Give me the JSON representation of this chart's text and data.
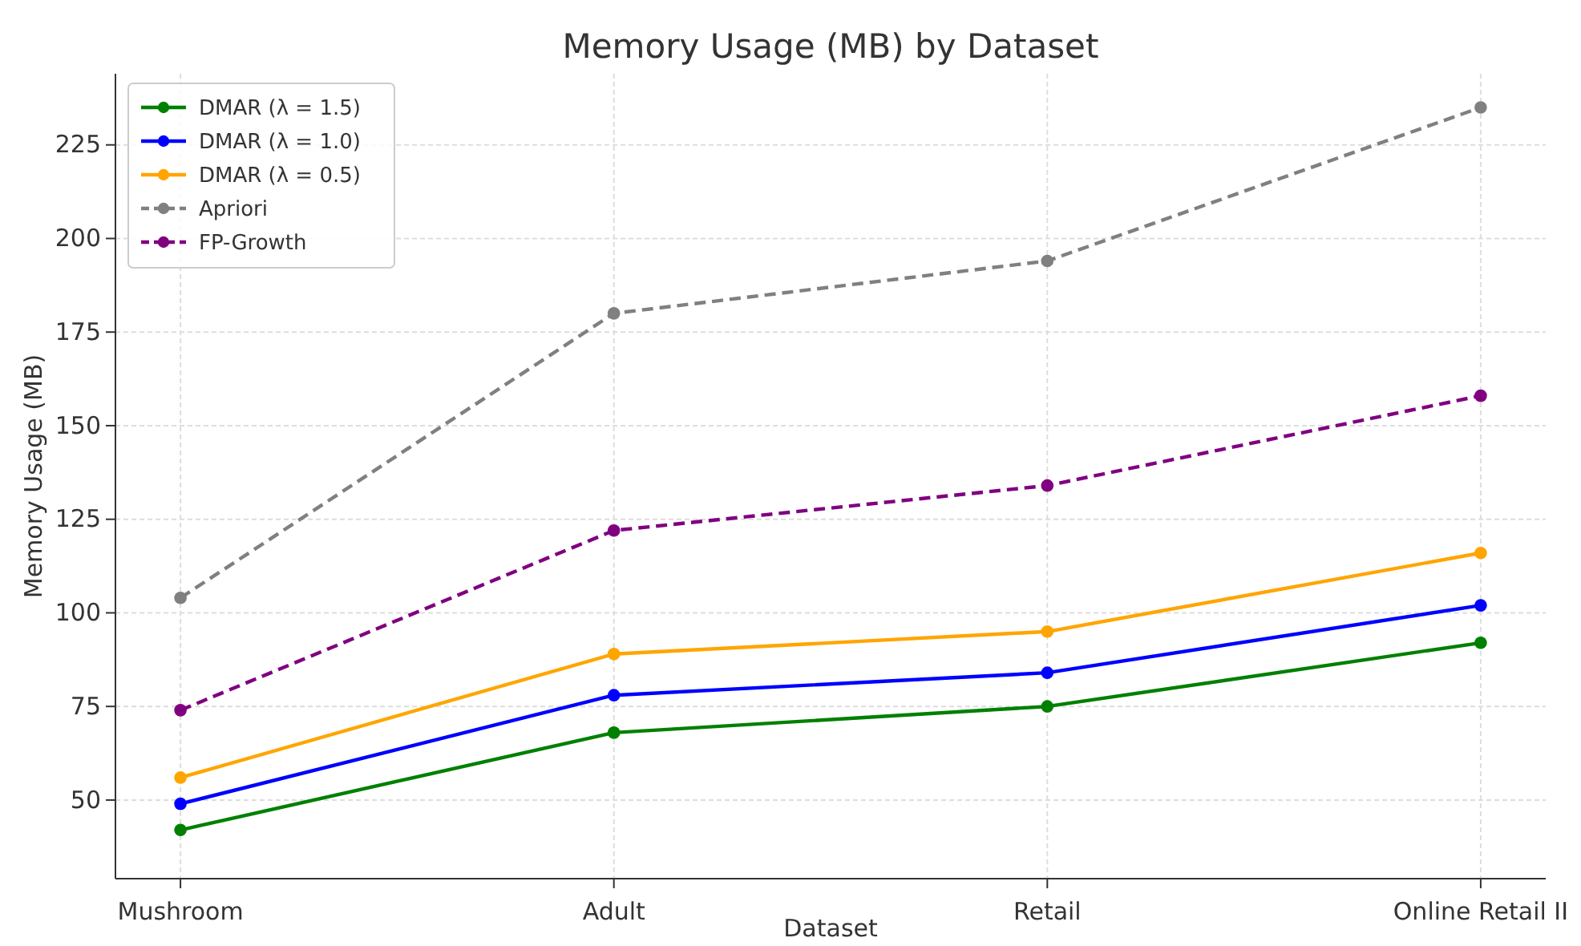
{
  "chart_data": {
    "type": "line",
    "title": "Memory Usage (MB) by Dataset",
    "xlabel": "Dataset",
    "ylabel": "Memory Usage (MB)",
    "categories": [
      "Mushroom",
      "Adult",
      "Retail",
      "Online Retail II"
    ],
    "ylim": [
      29,
      244
    ],
    "yticks": [
      50,
      75,
      100,
      125,
      150,
      175,
      200,
      225
    ],
    "grid": true,
    "legend": "top left",
    "marker": "circle",
    "series": [
      {
        "name": "DMAR (λ = 1.5)",
        "color": "#008000",
        "values": [
          42,
          68,
          75,
          92
        ],
        "line_style": "solid"
      },
      {
        "name": "DMAR (λ = 1.0)",
        "color": "#0000ff",
        "values": [
          49,
          78,
          84,
          102
        ],
        "line_style": "solid"
      },
      {
        "name": "DMAR (λ = 0.5)",
        "color": "#ffa500",
        "values": [
          56,
          89,
          95,
          116
        ],
        "line_style": "solid"
      },
      {
        "name": "Apriori",
        "color": "#808080",
        "values": [
          104,
          180,
          194,
          235
        ],
        "line_style": "dashed"
      },
      {
        "name": "FP-Growth",
        "color": "#800080",
        "values": [
          74,
          122,
          134,
          158
        ],
        "line_style": "dashed"
      }
    ]
  }
}
